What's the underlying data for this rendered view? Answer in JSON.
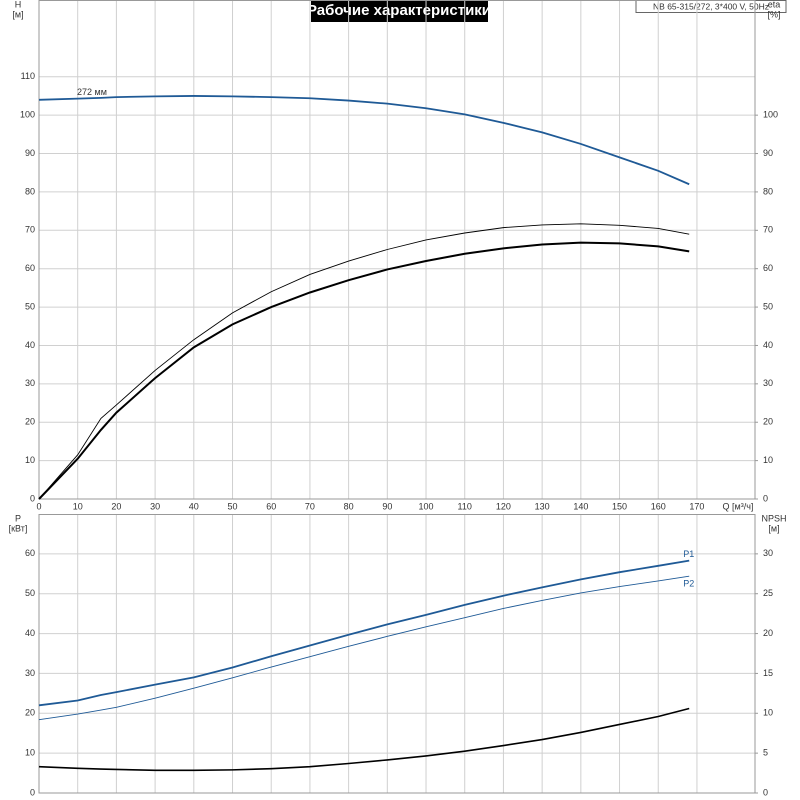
{
  "title": "Рабочие характеристики",
  "model": "NB 65-315/272, 3*400 V, 50Hz",
  "chart_data": [
    {
      "type": "line",
      "ylabel": "H",
      "yunit": "[м]",
      "y2label": "eta",
      "y2unit": "[%]",
      "xlabel": "Q [м³/ч]",
      "x": [
        0,
        10,
        16,
        20,
        30,
        40,
        50,
        60,
        70,
        80,
        90,
        100,
        110,
        120,
        130,
        140,
        150,
        160,
        168
      ],
      "xlim": [
        0,
        185
      ],
      "xticks": [
        0,
        10,
        20,
        30,
        40,
        50,
        60,
        70,
        80,
        90,
        100,
        110,
        120,
        130,
        140,
        150,
        160,
        170
      ],
      "ylim": [
        0,
        130
      ],
      "yticks": [
        0,
        10,
        20,
        30,
        40,
        50,
        60,
        70,
        80,
        90,
        100,
        110
      ],
      "y2lim": [
        0,
        130
      ],
      "y2ticks": [
        0,
        10,
        20,
        30,
        40,
        50,
        60,
        70,
        80,
        90,
        100
      ],
      "grid": true,
      "series": [
        {
          "name": "272 мм",
          "color": "#1f5a96",
          "width": 1.8,
          "label_at": "start",
          "values": [
            104,
            104.3,
            104.5,
            104.7,
            104.9,
            105,
            104.9,
            104.7,
            104.4,
            103.8,
            103,
            101.8,
            100.2,
            98,
            95.5,
            92.5,
            89,
            85.5,
            82
          ]
        },
        {
          "color": "#000000",
          "width": 0.9,
          "axis": "y2",
          "values": [
            0,
            11.5,
            21,
            24.5,
            33.5,
            41.5,
            48.5,
            54,
            58.5,
            62,
            65,
            67.5,
            69.3,
            70.7,
            71.4,
            71.7,
            71.3,
            70.5,
            69
          ]
        },
        {
          "color": "#000000",
          "width": 2,
          "axis": "y2",
          "values": [
            0,
            10.5,
            18,
            22.5,
            31.5,
            39.5,
            45.5,
            50,
            53.8,
            57,
            59.8,
            62,
            63.9,
            65.3,
            66.3,
            66.8,
            66.6,
            65.8,
            64.5
          ]
        }
      ]
    },
    {
      "type": "line",
      "ylabel": "P",
      "yunit": "[кВт]",
      "y2label": "NPSH",
      "y2unit": "[м]",
      "x": [
        0,
        10,
        16,
        20,
        30,
        40,
        50,
        60,
        70,
        80,
        90,
        100,
        110,
        120,
        130,
        140,
        150,
        160,
        168
      ],
      "xlim": [
        0,
        185
      ],
      "ylim": [
        0,
        70
      ],
      "yticks": [
        0,
        10,
        20,
        30,
        40,
        50,
        60
      ],
      "y2lim": [
        0,
        35
      ],
      "y2ticks": [
        0,
        5,
        10,
        15,
        20,
        25,
        30
      ],
      "grid": true,
      "series": [
        {
          "name": "P1",
          "color": "#1f5a96",
          "width": 1.8,
          "label_at": "end",
          "values": [
            22,
            23.2,
            24.6,
            25.3,
            27.2,
            29,
            31.5,
            34.3,
            37,
            39.7,
            42.3,
            44.7,
            47.2,
            49.5,
            51.6,
            53.6,
            55.4,
            57,
            58.3
          ]
        },
        {
          "name": "P2",
          "color": "#1f5a96",
          "width": 0.9,
          "label_at": "end",
          "values": [
            18.4,
            19.8,
            20.8,
            21.5,
            23.8,
            26.3,
            28.9,
            31.6,
            34.2,
            36.8,
            39.3,
            41.7,
            44,
            46.3,
            48.3,
            50.2,
            51.8,
            53.2,
            54.4
          ]
        },
        {
          "color": "#000000",
          "width": 1.6,
          "axis": "y2",
          "values": [
            3.3,
            3.1,
            3.0,
            2.95,
            2.85,
            2.85,
            2.9,
            3.05,
            3.3,
            3.7,
            4.15,
            4.65,
            5.25,
            5.95,
            6.7,
            7.6,
            8.6,
            9.6,
            10.6
          ]
        }
      ]
    }
  ]
}
